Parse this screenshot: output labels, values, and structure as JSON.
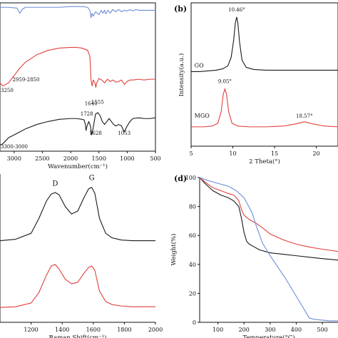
{
  "figure": {
    "description_hidden": true
  },
  "colors": {
    "black": "#1a1a1a",
    "red": "#e0403c",
    "blue": "#6b8fd8",
    "axis": "#111111"
  },
  "chart_data": [
    {
      "id": "a",
      "type": "line",
      "panel_label": "",
      "title": "",
      "xlabel": "Wavenumber(cm⁻¹)",
      "ylabel": "",
      "xlim": [
        3250,
        500
      ],
      "ylim": [
        0,
        100
      ],
      "x_reversed": true,
      "xticks": [
        3000,
        2500,
        2000,
        1500,
        1000,
        500
      ],
      "xtick_labels": [
        "3000",
        "2500",
        "2000",
        "1500",
        "1000",
        "500"
      ],
      "annotations": [
        {
          "text": "3250",
          "x": 3180,
          "y": 40
        },
        {
          "text": "2959-2850",
          "x": 2790,
          "y": 47
        },
        {
          "text": "1640",
          "x": 1640,
          "y": 31
        },
        {
          "text": "1555",
          "x": 1525,
          "y": 32
        },
        {
          "text": "1728",
          "x": 1715,
          "y": 24
        },
        {
          "text": "1628",
          "x": 1560,
          "y": 11
        },
        {
          "text": "1053",
          "x": 1053,
          "y": 11
        },
        {
          "text": "3300-3000",
          "x": 3120,
          "y": 2
        }
      ],
      "series": [
        {
          "color": "#6b8fd8",
          "x": [
            3250,
            3100,
            2950,
            2900,
            2860,
            2800,
            2600,
            2400,
            2200,
            2000,
            1800,
            1700,
            1660,
            1640,
            1620,
            1600,
            1560,
            1500,
            1460,
            1430,
            1400,
            1380,
            1340,
            1300,
            1260,
            1200,
            1150,
            1100,
            1050,
            1000,
            950,
            900,
            850,
            800,
            700,
            600,
            500
          ],
          "y": [
            97,
            97,
            96.5,
            93,
            95.5,
            97,
            97,
            97,
            97,
            97.5,
            97.5,
            97,
            95,
            90,
            93,
            91,
            94,
            92,
            95,
            93,
            95,
            92.5,
            95,
            93,
            95.5,
            94,
            95.5,
            94,
            95,
            94.5,
            95.5,
            94.5,
            95.5,
            95,
            95,
            95,
            95
          ]
        },
        {
          "color": "#e0403c",
          "x": [
            3250,
            3200,
            3100,
            3000,
            2900,
            2800,
            2600,
            2400,
            2200,
            2000,
            1900,
            1800,
            1700,
            1660,
            1640,
            1620,
            1600,
            1570,
            1555,
            1540,
            1500,
            1450,
            1400,
            1350,
            1300,
            1250,
            1200,
            1150,
            1100,
            1050,
            1000,
            950,
            900,
            800,
            700,
            600,
            500
          ],
          "y": [
            46,
            44,
            46,
            51,
            56,
            60,
            65,
            68,
            69.5,
            70,
            70,
            69.5,
            68,
            64,
            48,
            44,
            48,
            46,
            43,
            46,
            49,
            48,
            46,
            48.5,
            47,
            48,
            46.5,
            47,
            48,
            45,
            47,
            48,
            48,
            48.5,
            48,
            48.5,
            48.5
          ]
        },
        {
          "color": "#1a1a1a",
          "x": [
            3250,
            3200,
            3150,
            3100,
            3000,
            2900,
            2800,
            2600,
            2400,
            2200,
            2000,
            1900,
            1800,
            1760,
            1740,
            1728,
            1710,
            1680,
            1650,
            1628,
            1600,
            1560,
            1520,
            1480,
            1440,
            1400,
            1360,
            1320,
            1280,
            1240,
            1200,
            1150,
            1100,
            1053,
            1000,
            950,
            900,
            800,
            700,
            600,
            500
          ],
          "y": [
            4,
            5,
            7,
            9,
            11,
            13,
            15,
            18,
            20,
            21.5,
            22,
            22,
            21.5,
            21,
            18,
            14,
            17,
            20,
            17,
            11,
            16,
            25,
            26,
            24,
            20,
            18,
            20,
            22,
            20,
            18,
            17,
            18,
            17,
            13,
            17,
            20,
            22,
            22.5,
            22,
            22,
            22.5
          ]
        }
      ]
    },
    {
      "id": "b",
      "type": "line",
      "panel_label": "(b)",
      "title": "",
      "xlabel": "2 Theta(°)",
      "ylabel": "Intensity(a.u.)",
      "xlim": [
        5,
        22.6
      ],
      "ylim": [
        0,
        100
      ],
      "xticks": [
        5,
        10,
        15,
        20
      ],
      "xtick_labels": [
        "5",
        "10",
        "15",
        "20"
      ],
      "annotations": [
        {
          "text": "10.46°",
          "x": 10.46,
          "y": 94
        },
        {
          "text": "GO",
          "x": 5.4,
          "y": 55
        },
        {
          "text": "9.05°",
          "x": 9.05,
          "y": 44
        },
        {
          "text": "MGO",
          "x": 5.4,
          "y": 20
        },
        {
          "text": "18.57°",
          "x": 18.57,
          "y": 20
        }
      ],
      "series": [
        {
          "name": "GO",
          "color": "#1a1a1a",
          "x": [
            5,
            6,
            7,
            8,
            8.8,
            9.4,
            9.8,
            10.1,
            10.3,
            10.46,
            10.6,
            10.8,
            11.1,
            11.6,
            12.5,
            14,
            16,
            18,
            20,
            22.6
          ],
          "y": [
            52,
            52,
            52.5,
            53,
            54,
            56,
            62,
            74,
            86,
            90,
            86,
            73,
            60,
            55,
            53.5,
            53,
            53,
            53,
            53,
            53
          ]
        },
        {
          "name": "MGO",
          "color": "#e0403c",
          "x": [
            5,
            6.5,
            7.5,
            8.2,
            8.6,
            8.85,
            9.05,
            9.25,
            9.5,
            9.9,
            10.6,
            12,
            14,
            16,
            17.5,
            18.57,
            19.6,
            21,
            22.6
          ],
          "y": [
            13.5,
            13.5,
            14,
            16,
            24,
            36,
            40,
            36,
            24,
            16,
            14,
            13.5,
            13.5,
            14,
            15.5,
            17,
            15.5,
            14,
            13.5
          ]
        }
      ]
    },
    {
      "id": "c",
      "type": "line",
      "panel_label": "",
      "title": "",
      "xlabel": "Raman Shift(cm⁻¹)",
      "ylabel": "",
      "xlim": [
        1000,
        2000
      ],
      "ylim": [
        0,
        100
      ],
      "xticks": [
        1200,
        1400,
        1600,
        1800,
        2000
      ],
      "xtick_labels": [
        "1200",
        "1400",
        "1600",
        "1800",
        "2000"
      ],
      "annotations": [
        {
          "text": "D",
          "x": 1355,
          "y": 92
        },
        {
          "text": "G",
          "x": 1590,
          "y": 96
        }
      ],
      "series": [
        {
          "color": "#1a1a1a",
          "x": [
            1000,
            1100,
            1200,
            1250,
            1300,
            1330,
            1355,
            1380,
            1420,
            1460,
            1500,
            1540,
            1570,
            1590,
            1610,
            1640,
            1680,
            1720,
            1780,
            1850,
            1930,
            2000
          ],
          "y": [
            55,
            56,
            60,
            70,
            82,
            86.5,
            87.5,
            86,
            78,
            73,
            75,
            84,
            90,
            91,
            87,
            70,
            60,
            57,
            55.5,
            55,
            55,
            55
          ]
        },
        {
          "color": "#e0403c",
          "x": [
            1000,
            1100,
            1200,
            1250,
            1300,
            1330,
            1355,
            1380,
            1420,
            1460,
            1500,
            1540,
            1570,
            1590,
            1610,
            1640,
            1680,
            1720,
            1780,
            1850,
            1930,
            2000
          ],
          "y": [
            10,
            10.5,
            13,
            20,
            32,
            38,
            39,
            36,
            29,
            26,
            27,
            33,
            37,
            38,
            35,
            21,
            14,
            12,
            11,
            10.5,
            10.5,
            10.5
          ]
        }
      ]
    },
    {
      "id": "d",
      "type": "line",
      "panel_label": "(d)",
      "title": "",
      "xlabel": "Temperature(°C)",
      "ylabel": "Weight(%)",
      "xlim": [
        30,
        560
      ],
      "ylim": [
        0,
        100
      ],
      "xticks": [
        100,
        200,
        300,
        400,
        500
      ],
      "xtick_labels": [
        "100",
        "200",
        "300",
        "400",
        "500"
      ],
      "yticks": [
        0,
        20,
        40,
        60,
        80,
        100
      ],
      "ytick_labels": [
        "0",
        "20",
        "40",
        "60",
        "80",
        "100"
      ],
      "series": [
        {
          "color": "#1a1a1a",
          "x": [
            30,
            50,
            80,
            110,
            140,
            160,
            180,
            190,
            200,
            210,
            220,
            240,
            260,
            300,
            350,
            400,
            450,
            500,
            560
          ],
          "y": [
            100,
            96,
            91,
            88,
            86,
            84,
            80,
            72,
            62,
            56,
            54,
            52,
            50,
            48,
            47,
            46,
            45,
            44,
            43
          ]
        },
        {
          "color": "#e0403c",
          "x": [
            30,
            50,
            80,
            110,
            140,
            160,
            180,
            190,
            200,
            220,
            250,
            280,
            300,
            350,
            400,
            450,
            500,
            560
          ],
          "y": [
            100,
            97,
            93,
            91,
            89,
            88,
            84,
            78,
            74,
            71,
            68,
            64,
            61,
            57,
            54,
            52,
            50.5,
            49
          ]
        },
        {
          "color": "#6b8fd8",
          "x": [
            30,
            60,
            100,
            140,
            170,
            200,
            230,
            250,
            270,
            300,
            330,
            360,
            390,
            420,
            440,
            450,
            470,
            500,
            530,
            560
          ],
          "y": [
            100,
            98,
            96,
            94,
            91,
            86,
            76,
            65,
            55,
            46,
            38,
            30,
            21,
            12,
            6,
            3,
            2,
            1.5,
            1,
            1
          ]
        }
      ]
    }
  ]
}
